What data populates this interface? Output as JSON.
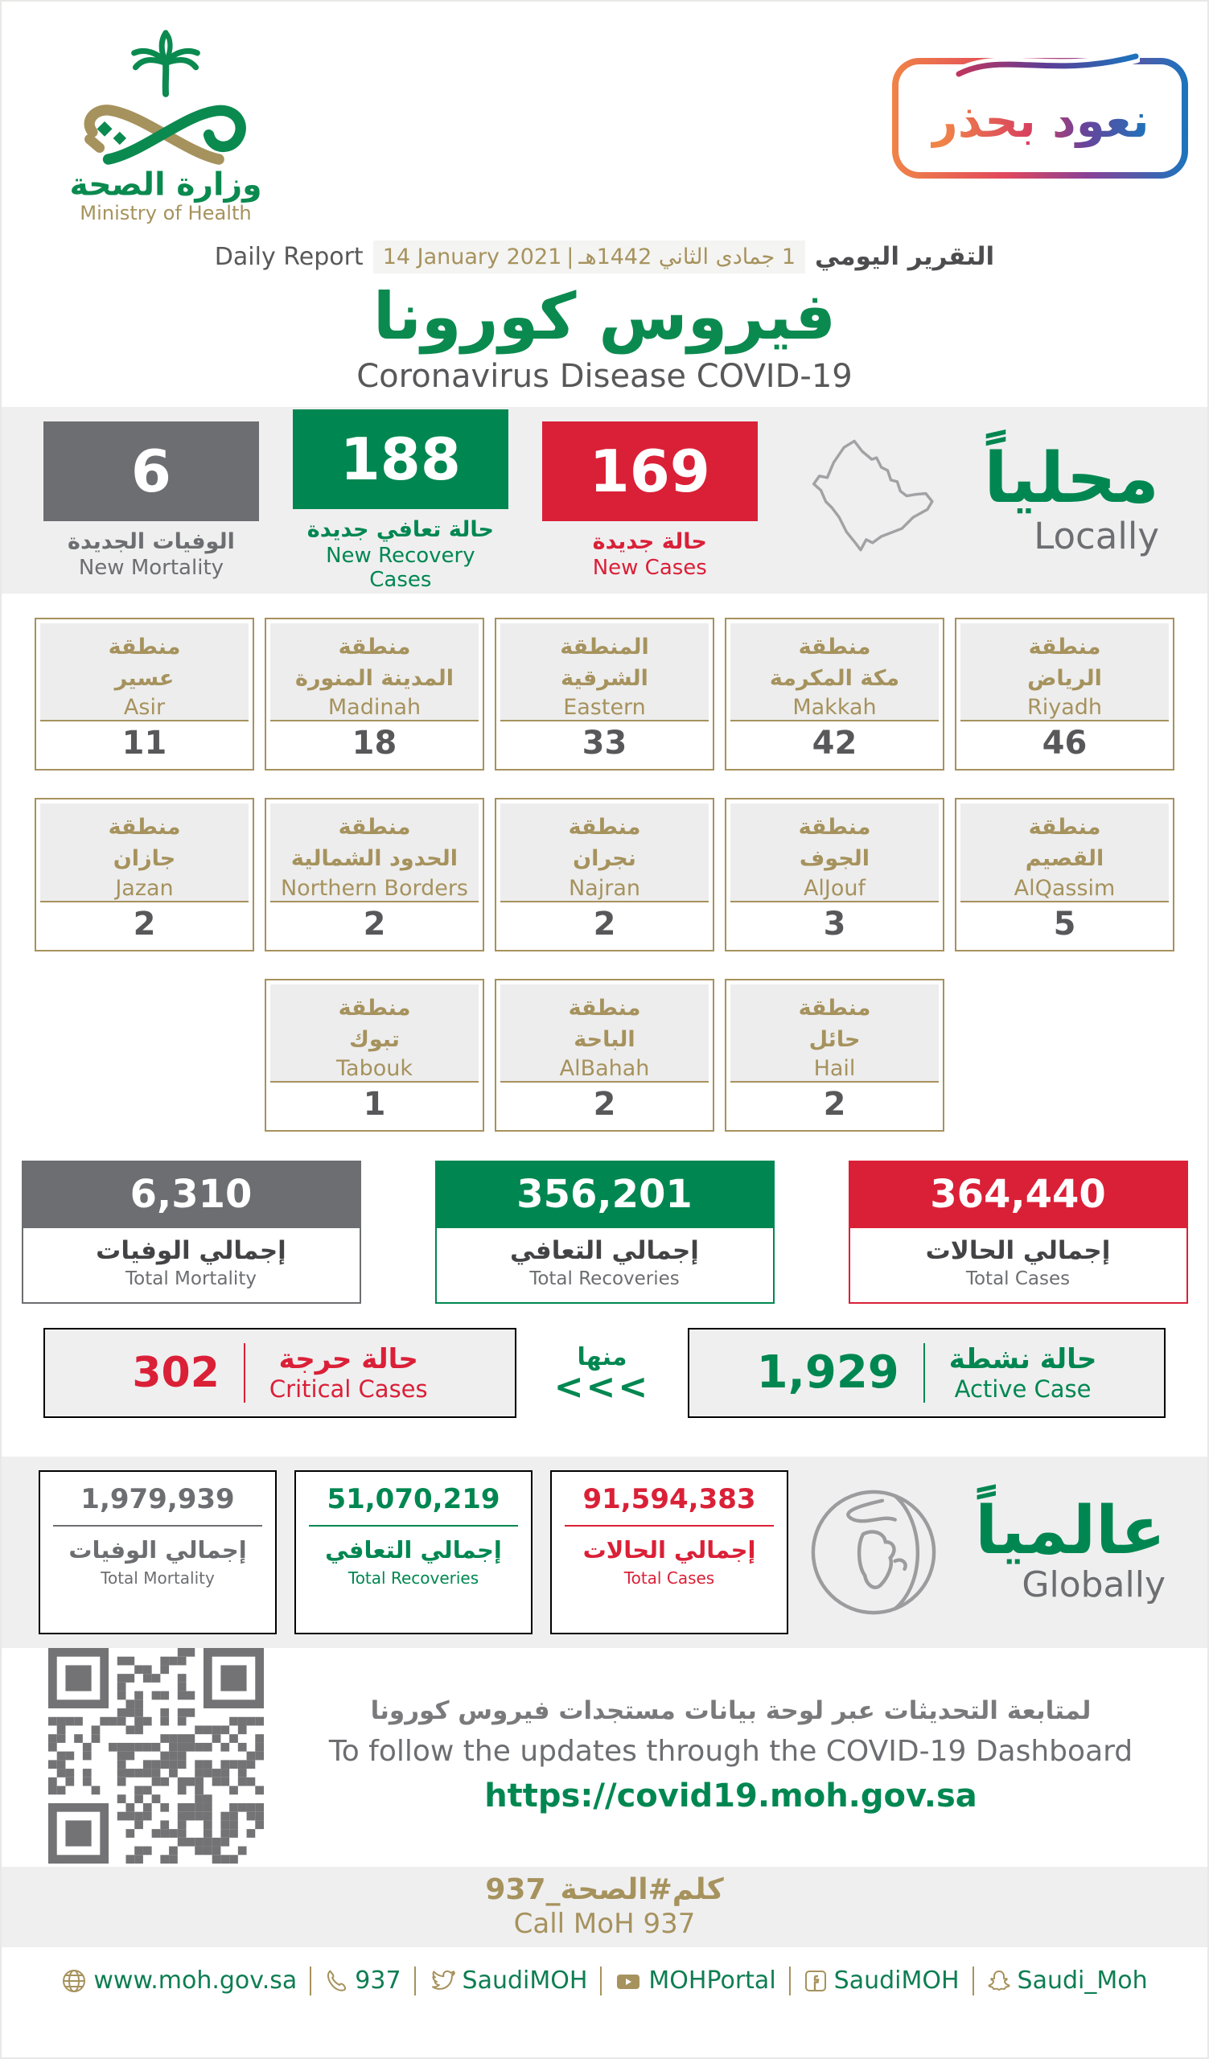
{
  "theme": {
    "green": "#008751",
    "red": "#da2037",
    "gray": "#6d6e71",
    "gold": "#a6925d",
    "band_bg": "#efeff0",
    "badge_gradient": [
      "#f08448",
      "#e2485c",
      "#8a4196",
      "#1b74bd"
    ]
  },
  "brand": {
    "logo_ar": "وزارة الصحة",
    "logo_en": "Ministry of Health",
    "badge_text": "نعود بحذر"
  },
  "report": {
    "daily_report_en": "Daily Report",
    "date_gregorian": "14 January 2021",
    "date_divider": "|",
    "date_hijri": "1 جمادى الثاني 1442هـ",
    "daily_report_ar": "التقرير اليومي",
    "title_ar": "فيروس كورونا",
    "title_en": "Coronavirus Disease COVID-19"
  },
  "locally": {
    "label_ar": "محلياً",
    "label_en": "Locally",
    "stats": [
      {
        "value": "6",
        "label_ar": "الوفيات الجديدة",
        "label_en": "New Mortality",
        "color": "#6d6e71"
      },
      {
        "value": "188",
        "label_ar": "حالة تعافي جديدة",
        "label_en": "New Recovery Cases",
        "color": "#008751"
      },
      {
        "value": "169",
        "label_ar": "حالة جديدة",
        "label_en": "New Cases",
        "color": "#da2037"
      }
    ]
  },
  "regions": {
    "rows": [
      {
        "cards": [
          {
            "ar": "منطقة\nعسير",
            "en": "Asir",
            "value": "11"
          },
          {
            "ar": "منطقة\nالمدينة المنورة",
            "en": "Madinah",
            "value": "18"
          },
          {
            "ar": "المنطقة\nالشرقية",
            "en": "Eastern",
            "value": "33"
          },
          {
            "ar": "منطقة\nمكة المكرمة",
            "en": "Makkah",
            "value": "42"
          },
          {
            "ar": "منطقة\nالرياض",
            "en": "Riyadh",
            "value": "46"
          }
        ]
      },
      {
        "cards": [
          {
            "ar": "منطقة\nجازان",
            "en": "Jazan",
            "value": "2"
          },
          {
            "ar": "منطقة\nالحدود الشمالية",
            "en": "Northern Borders",
            "value": "2"
          },
          {
            "ar": "منطقة\nنجران",
            "en": "Najran",
            "value": "2"
          },
          {
            "ar": "منطقة\nالجوف",
            "en": "AlJouf",
            "value": "3"
          },
          {
            "ar": "منطقة\nالقصيم",
            "en": "AlQassim",
            "value": "5"
          }
        ]
      },
      {
        "cards": [
          {
            "ar": "منطقة\nتبوك",
            "en": "Tabouk",
            "value": "1"
          },
          {
            "ar": "منطقة\nالباحة",
            "en": "AlBahah",
            "value": "2"
          },
          {
            "ar": "منطقة\nحائل",
            "en": "Hail",
            "value": "2"
          }
        ]
      }
    ]
  },
  "totals": [
    {
      "value": "6,310",
      "label_ar": "إجمالي الوفيات",
      "label_en": "Total Mortality",
      "color": "#6d6e71"
    },
    {
      "value": "356,201",
      "label_ar": "إجمالي التعافي",
      "label_en": "Total Recoveries",
      "color": "#008751"
    },
    {
      "value": "364,440",
      "label_ar": "إجمالي الحالات",
      "label_en": "Total Cases",
      "color": "#da2037"
    }
  ],
  "critical": {
    "value": "302",
    "label_ar": "حالة حرجة",
    "label_en": "Critical Cases"
  },
  "of_which": {
    "label": "منها",
    "chevrons": "<<<"
  },
  "active": {
    "value": "1,929",
    "label_ar": "حالة نشطة",
    "label_en": "Active Case"
  },
  "globally": {
    "label_ar": "عالمياً",
    "label_en": "Globally",
    "stats": [
      {
        "value": "1,979,939",
        "label_ar": "إجمالي الوفيات",
        "label_en": "Total Mortality",
        "color": "#6d6e71"
      },
      {
        "value": "51,070,219",
        "label_ar": "إجمالي التعافي",
        "label_en": "Total Recoveries",
        "color": "#008751"
      },
      {
        "value": "91,594,383",
        "label_ar": "إجمالي الحالات",
        "label_en": "Total Cases",
        "color": "#da2037"
      }
    ]
  },
  "dashboard": {
    "line_ar": "لمتابعة التحديثات عبر لوحة بيانات مستجدات فيروس كورونا",
    "line_en": "To follow the updates through the COVID-19 Dashboard",
    "url": "https://covid19.moh.gov.sa"
  },
  "call": {
    "ar": "كلم#الصحة_937",
    "en": "Call MoH 937"
  },
  "footer": {
    "items": [
      {
        "icon": "globe-icon",
        "label": "www.moh.gov.sa"
      },
      {
        "icon": "phone-icon",
        "label": "937"
      },
      {
        "icon": "twitter-icon",
        "label": "SaudiMOH"
      },
      {
        "icon": "youtube-icon",
        "label": "MOHPortal"
      },
      {
        "icon": "facebook-icon",
        "label": "SaudiMOH"
      },
      {
        "icon": "snapchat-icon",
        "label": "Saudi_Moh"
      }
    ]
  }
}
